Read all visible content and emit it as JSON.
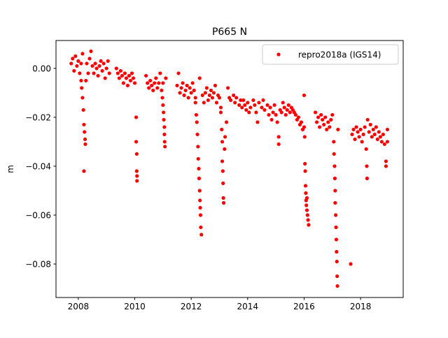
{
  "chart_data": {
    "type": "scatter",
    "title": "P665 N",
    "xlabel": "",
    "ylabel": "m",
    "xlim": [
      2007.21,
      2019.51
    ],
    "ylim": [
      -0.0937,
      0.0114
    ],
    "xticks": [
      2008,
      2010,
      2012,
      2014,
      2016,
      2018
    ],
    "xtick_labels": [
      "2008",
      "2010",
      "2012",
      "2014",
      "2016",
      "2018"
    ],
    "yticks": [
      0.0,
      -0.02,
      -0.04,
      -0.06,
      -0.08
    ],
    "ytick_labels": [
      "0.00",
      "−0.02",
      "−0.04",
      "−0.06",
      "−0.08"
    ],
    "grid": false,
    "legend": {
      "placement": "top-right",
      "entries": [
        "repro2018a (IGS14)"
      ]
    },
    "series": [
      {
        "name": "repro2018a (IGS14)",
        "color": "#ff0000",
        "marker": "circle",
        "points": [
          [
            2007.75,
            0.002
          ],
          [
            2007.8,
            0.004
          ],
          [
            2007.85,
            -0.001
          ],
          [
            2007.9,
            0.005
          ],
          [
            2007.95,
            0.001
          ],
          [
            2008.0,
            0.003
          ],
          [
            2008.05,
            -0.002
          ],
          [
            2008.1,
            0.002
          ],
          [
            2008.15,
            0.006
          ],
          [
            2008.3,
            0.002
          ],
          [
            2008.35,
            -0.002
          ],
          [
            2008.4,
            0.004
          ],
          [
            2008.45,
            0.007
          ],
          [
            2008.5,
            0.001
          ],
          [
            2008.55,
            -0.002
          ],
          [
            2008.6,
            0.002
          ],
          [
            2008.65,
            0.0
          ],
          [
            2008.7,
            -0.003
          ],
          [
            2008.75,
            0.001
          ],
          [
            2008.8,
            0.003
          ],
          [
            2008.85,
            -0.001
          ],
          [
            2008.9,
            0.002
          ],
          [
            2008.95,
            -0.004
          ],
          [
            2009.0,
            0.0
          ],
          [
            2009.05,
            0.003
          ],
          [
            2009.1,
            -0.002
          ],
          [
            2008.1,
            -0.005
          ],
          [
            2008.12,
            -0.008
          ],
          [
            2008.15,
            -0.012
          ],
          [
            2008.18,
            -0.017
          ],
          [
            2008.2,
            -0.023
          ],
          [
            2008.22,
            -0.026
          ],
          [
            2008.24,
            -0.029
          ],
          [
            2008.25,
            -0.031
          ],
          [
            2008.2,
            -0.042
          ],
          [
            2008.27,
            -0.005
          ],
          [
            2009.35,
            0.0
          ],
          [
            2009.4,
            -0.002
          ],
          [
            2009.45,
            -0.004
          ],
          [
            2009.5,
            -0.001
          ],
          [
            2009.55,
            -0.003
          ],
          [
            2009.6,
            -0.006
          ],
          [
            2009.65,
            -0.002
          ],
          [
            2009.7,
            -0.004
          ],
          [
            2009.75,
            -0.007
          ],
          [
            2009.8,
            -0.003
          ],
          [
            2009.85,
            -0.005
          ],
          [
            2009.9,
            -0.002
          ],
          [
            2009.95,
            -0.004
          ],
          [
            2010.0,
            -0.006
          ],
          [
            2010.05,
            -0.02
          ],
          [
            2010.05,
            -0.03
          ],
          [
            2010.07,
            -0.035
          ],
          [
            2010.07,
            -0.042
          ],
          [
            2010.08,
            -0.044
          ],
          [
            2010.08,
            -0.046
          ],
          [
            2010.4,
            -0.003
          ],
          [
            2010.45,
            -0.006
          ],
          [
            2010.5,
            -0.008
          ],
          [
            2010.55,
            -0.005
          ],
          [
            2010.6,
            -0.007
          ],
          [
            2010.65,
            -0.009
          ],
          [
            2010.7,
            -0.006
          ],
          [
            2010.75,
            -0.004
          ],
          [
            2010.8,
            -0.008
          ],
          [
            2010.85,
            -0.006
          ],
          [
            2010.9,
            -0.002
          ],
          [
            2010.95,
            -0.009
          ],
          [
            2011.0,
            -0.006
          ],
          [
            2011.1,
            -0.004
          ],
          [
            2010.98,
            -0.012
          ],
          [
            2011.0,
            -0.015
          ],
          [
            2011.02,
            -0.018
          ],
          [
            2011.03,
            -0.021
          ],
          [
            2011.05,
            -0.024
          ],
          [
            2011.05,
            -0.027
          ],
          [
            2011.06,
            -0.03
          ],
          [
            2011.07,
            -0.032
          ],
          [
            2011.5,
            -0.007
          ],
          [
            2011.55,
            -0.002
          ],
          [
            2011.6,
            -0.01
          ],
          [
            2011.65,
            -0.008
          ],
          [
            2011.7,
            -0.006
          ],
          [
            2011.75,
            -0.011
          ],
          [
            2011.8,
            -0.009
          ],
          [
            2011.85,
            -0.007
          ],
          [
            2011.9,
            -0.012
          ],
          [
            2011.95,
            -0.008
          ],
          [
            2012.0,
            -0.01
          ],
          [
            2012.05,
            -0.006
          ],
          [
            2012.1,
            -0.009
          ],
          [
            2012.15,
            -0.012
          ],
          [
            2012.15,
            -0.014
          ],
          [
            2012.18,
            -0.019
          ],
          [
            2012.2,
            -0.022
          ],
          [
            2012.22,
            -0.027
          ],
          [
            2012.24,
            -0.032
          ],
          [
            2012.25,
            -0.037
          ],
          [
            2012.27,
            -0.041
          ],
          [
            2012.28,
            -0.045
          ],
          [
            2012.3,
            -0.05
          ],
          [
            2012.31,
            -0.054
          ],
          [
            2012.32,
            -0.057
          ],
          [
            2012.33,
            -0.06
          ],
          [
            2012.34,
            -0.065
          ],
          [
            2012.36,
            -0.068
          ],
          [
            2012.3,
            -0.004
          ],
          [
            2012.4,
            -0.011
          ],
          [
            2012.45,
            -0.014
          ],
          [
            2012.5,
            -0.01
          ],
          [
            2012.55,
            -0.008
          ],
          [
            2012.6,
            -0.013
          ],
          [
            2012.65,
            -0.011
          ],
          [
            2012.7,
            -0.009
          ],
          [
            2012.75,
            -0.012
          ],
          [
            2012.8,
            -0.01
          ],
          [
            2012.85,
            -0.007
          ],
          [
            2012.9,
            -0.014
          ],
          [
            2012.95,
            -0.011
          ],
          [
            2013.0,
            -0.012
          ],
          [
            2013.05,
            -0.016
          ],
          [
            2013.05,
            -0.018
          ],
          [
            2013.08,
            -0.025
          ],
          [
            2013.1,
            -0.03
          ],
          [
            2013.1,
            -0.038
          ],
          [
            2013.12,
            -0.042
          ],
          [
            2013.13,
            -0.047
          ],
          [
            2013.14,
            -0.053
          ],
          [
            2013.15,
            -0.055
          ],
          [
            2013.18,
            -0.033
          ],
          [
            2013.2,
            -0.028
          ],
          [
            2013.25,
            -0.022
          ],
          [
            2013.3,
            -0.008
          ],
          [
            2013.35,
            -0.012
          ],
          [
            2013.4,
            -0.013
          ],
          [
            2013.5,
            -0.011
          ],
          [
            2013.55,
            -0.014
          ],
          [
            2013.6,
            -0.012
          ],
          [
            2013.7,
            -0.015
          ],
          [
            2013.75,
            -0.013
          ],
          [
            2013.8,
            -0.016
          ],
          [
            2013.85,
            -0.013
          ],
          [
            2013.9,
            -0.015
          ],
          [
            2013.95,
            -0.017
          ],
          [
            2014.0,
            -0.014
          ],
          [
            2014.05,
            -0.018
          ],
          [
            2014.1,
            -0.016
          ],
          [
            2014.2,
            -0.013
          ],
          [
            2014.25,
            -0.015
          ],
          [
            2014.3,
            -0.018
          ],
          [
            2014.35,
            -0.022
          ],
          [
            2014.4,
            -0.014
          ],
          [
            2014.5,
            -0.016
          ],
          [
            2014.55,
            -0.013
          ],
          [
            2014.6,
            -0.017
          ],
          [
            2014.7,
            -0.015
          ],
          [
            2014.75,
            -0.019
          ],
          [
            2014.8,
            -0.016
          ],
          [
            2014.85,
            -0.021
          ],
          [
            2014.9,
            -0.018
          ],
          [
            2014.95,
            -0.015
          ],
          [
            2015.0,
            -0.019
          ],
          [
            2015.05,
            -0.022
          ],
          [
            2015.1,
            -0.028
          ],
          [
            2015.1,
            -0.031
          ],
          [
            2015.15,
            -0.017
          ],
          [
            2015.2,
            -0.018
          ],
          [
            2015.25,
            -0.014
          ],
          [
            2015.3,
            -0.016
          ],
          [
            2015.35,
            -0.019
          ],
          [
            2015.4,
            -0.017
          ],
          [
            2015.45,
            -0.015
          ],
          [
            2015.5,
            -0.018
          ],
          [
            2015.55,
            -0.016
          ],
          [
            2015.6,
            -0.017
          ],
          [
            2015.65,
            -0.018
          ],
          [
            2015.7,
            -0.019
          ],
          [
            2015.75,
            -0.021
          ],
          [
            2015.8,
            -0.02
          ],
          [
            2015.85,
            -0.023
          ],
          [
            2015.9,
            -0.022
          ],
          [
            2015.95,
            -0.025
          ],
          [
            2016.0,
            -0.024
          ],
          [
            2016.0,
            -0.011
          ],
          [
            2016.02,
            -0.028
          ],
          [
            2016.03,
            -0.039
          ],
          [
            2016.04,
            -0.042
          ],
          [
            2016.05,
            -0.048
          ],
          [
            2016.06,
            -0.051
          ],
          [
            2016.07,
            -0.054
          ],
          [
            2016.08,
            -0.056
          ],
          [
            2016.1,
            -0.058
          ],
          [
            2016.12,
            -0.06
          ],
          [
            2016.14,
            -0.062
          ],
          [
            2016.16,
            -0.064
          ],
          [
            2016.1,
            -0.053
          ],
          [
            2016.4,
            -0.018
          ],
          [
            2016.45,
            -0.022
          ],
          [
            2016.5,
            -0.02
          ],
          [
            2016.55,
            -0.024
          ],
          [
            2016.6,
            -0.019
          ],
          [
            2016.65,
            -0.021
          ],
          [
            2016.7,
            -0.023
          ],
          [
            2016.75,
            -0.02
          ],
          [
            2016.8,
            -0.025
          ],
          [
            2016.85,
            -0.022
          ],
          [
            2016.9,
            -0.024
          ],
          [
            2016.95,
            -0.021
          ],
          [
            2017.0,
            -0.019
          ],
          [
            2017.05,
            -0.03
          ],
          [
            2017.06,
            -0.035
          ],
          [
            2017.08,
            -0.04
          ],
          [
            2017.09,
            -0.045
          ],
          [
            2017.1,
            -0.05
          ],
          [
            2017.1,
            -0.055
          ],
          [
            2017.12,
            -0.06
          ],
          [
            2017.13,
            -0.065
          ],
          [
            2017.14,
            -0.07
          ],
          [
            2017.15,
            -0.075
          ],
          [
            2017.16,
            -0.079
          ],
          [
            2017.17,
            -0.085
          ],
          [
            2017.18,
            -0.089
          ],
          [
            2017.2,
            -0.025
          ],
          [
            2017.65,
            -0.08
          ],
          [
            2017.7,
            -0.027
          ],
          [
            2017.75,
            -0.025
          ],
          [
            2017.8,
            -0.029
          ],
          [
            2017.85,
            -0.024
          ],
          [
            2017.9,
            -0.026
          ],
          [
            2017.95,
            -0.028
          ],
          [
            2018.0,
            -0.025
          ],
          [
            2018.05,
            -0.03
          ],
          [
            2018.1,
            -0.027
          ],
          [
            2018.15,
            -0.024
          ],
          [
            2018.2,
            -0.033
          ],
          [
            2018.22,
            -0.04
          ],
          [
            2018.23,
            -0.045
          ],
          [
            2018.25,
            -0.021
          ],
          [
            2018.3,
            -0.026
          ],
          [
            2018.35,
            -0.023
          ],
          [
            2018.4,
            -0.028
          ],
          [
            2018.45,
            -0.025
          ],
          [
            2018.5,
            -0.027
          ],
          [
            2018.55,
            -0.024
          ],
          [
            2018.6,
            -0.029
          ],
          [
            2018.65,
            -0.026
          ],
          [
            2018.7,
            -0.028
          ],
          [
            2018.75,
            -0.03
          ],
          [
            2018.8,
            -0.027
          ],
          [
            2018.85,
            -0.031
          ],
          [
            2018.9,
            -0.038
          ],
          [
            2018.9,
            -0.04
          ],
          [
            2018.95,
            -0.025
          ],
          [
            2018.95,
            -0.03
          ]
        ]
      }
    ]
  }
}
